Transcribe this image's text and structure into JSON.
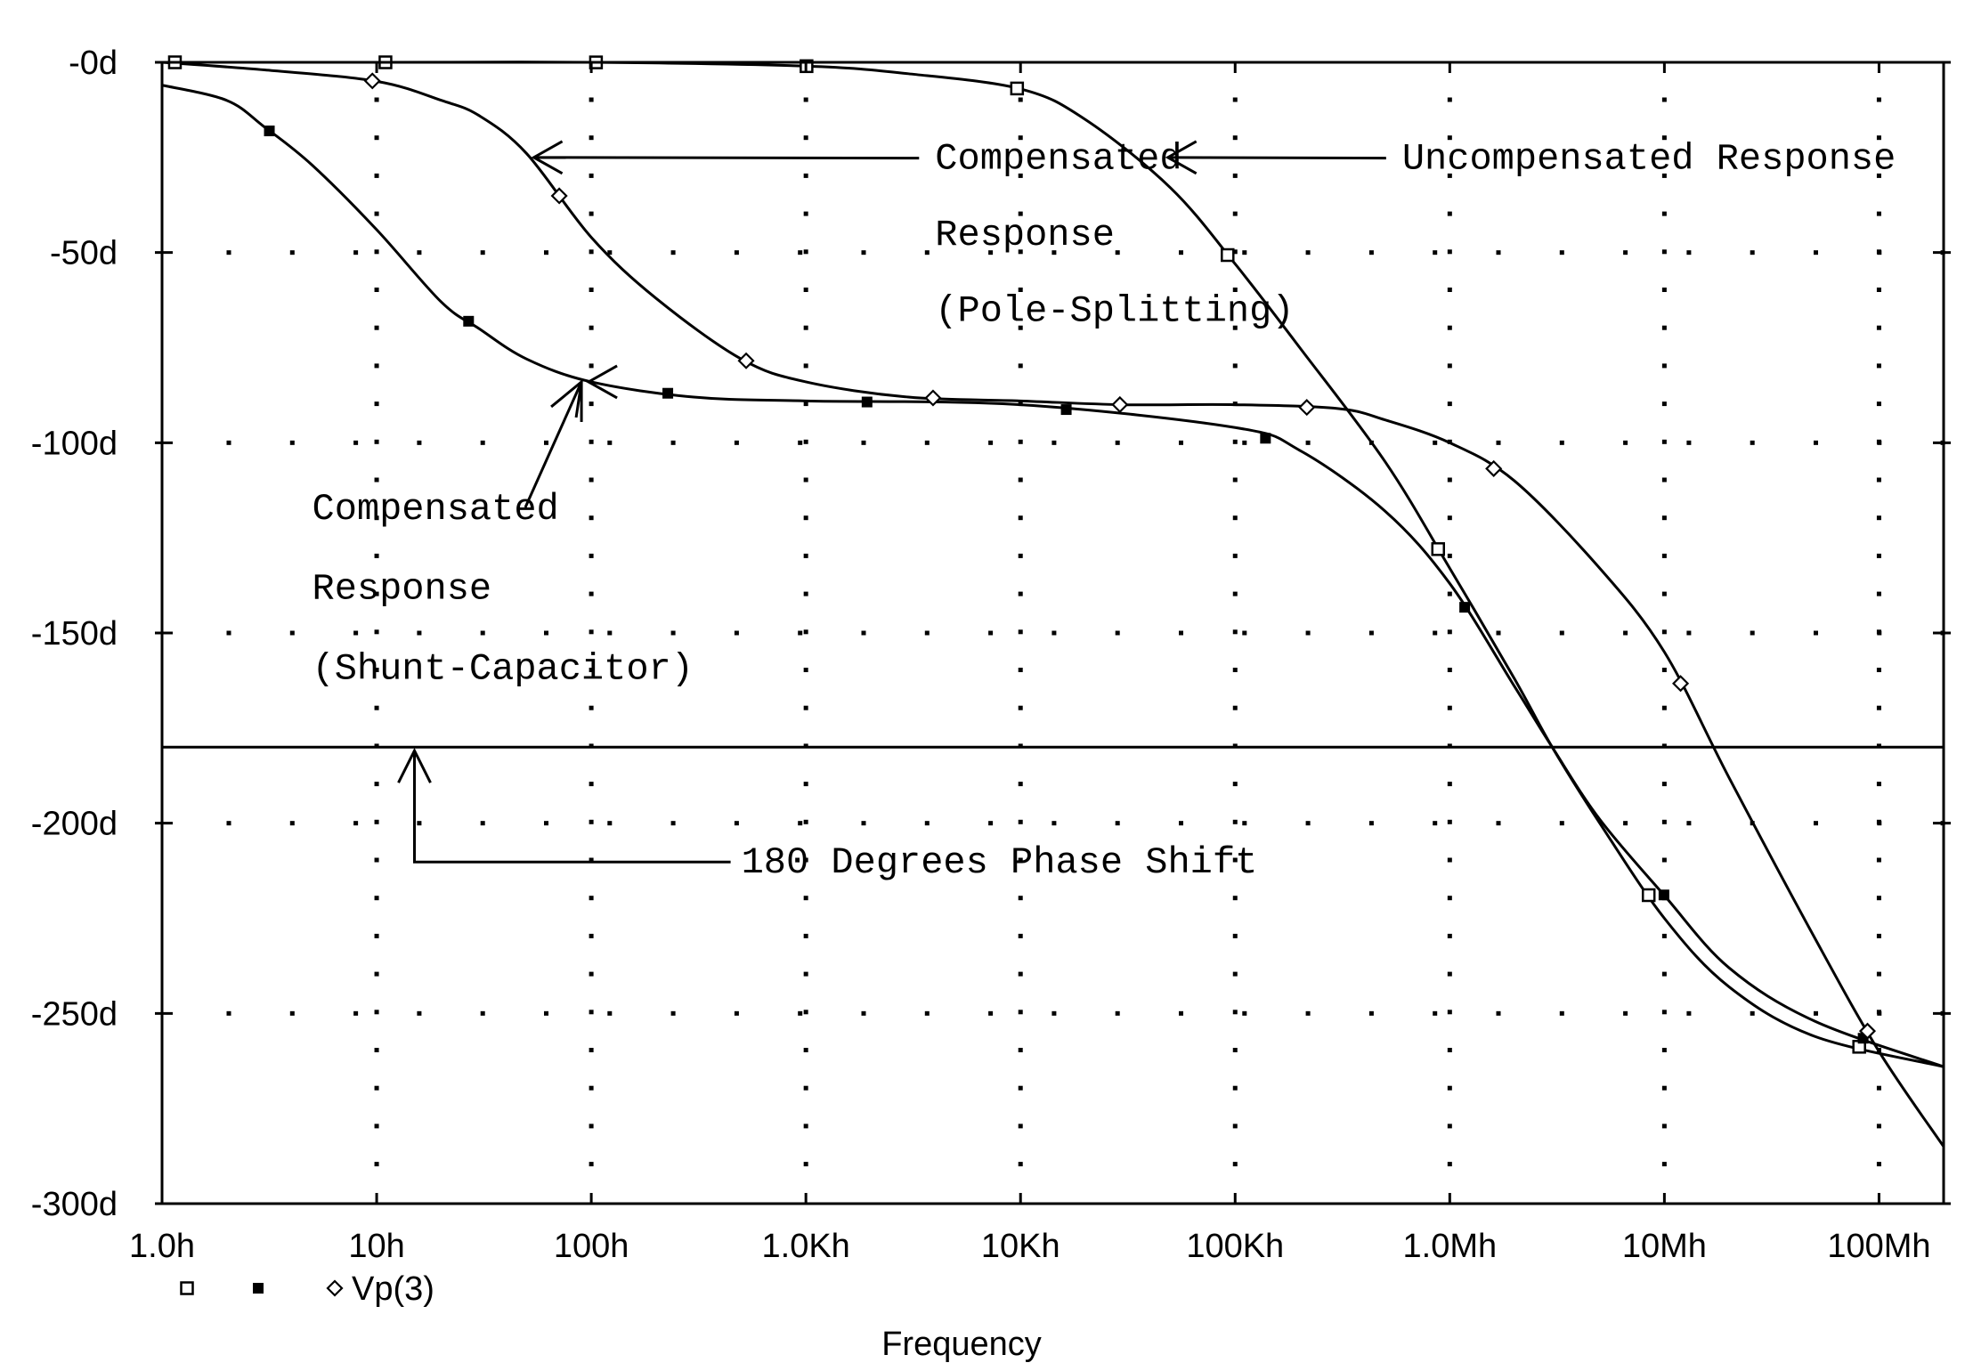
{
  "chart_data": {
    "type": "line",
    "title": "",
    "xlabel": "Frequency",
    "ylabel": "",
    "x_scale": "log",
    "xlim": [
      1,
      200000000
    ],
    "ylim": [
      -300,
      0
    ],
    "x_ticks": [
      {
        "value": 1,
        "label": "1.0h"
      },
      {
        "value": 10,
        "label": "10h"
      },
      {
        "value": 100,
        "label": "100h"
      },
      {
        "value": 1000,
        "label": "1.0Kh"
      },
      {
        "value": 10000,
        "label": "10Kh"
      },
      {
        "value": 100000,
        "label": "100Kh"
      },
      {
        "value": 1000000,
        "label": "1.0Mh"
      },
      {
        "value": 10000000,
        "label": "10Mh"
      },
      {
        "value": 100000000,
        "label": "100Mh"
      }
    ],
    "y_ticks": [
      {
        "value": 0,
        "label": "-0d"
      },
      {
        "value": -50,
        "label": "-50d"
      },
      {
        "value": -100,
        "label": "-100d"
      },
      {
        "value": -150,
        "label": "-150d"
      },
      {
        "value": -200,
        "label": "-200d"
      },
      {
        "value": -250,
        "label": "-250d"
      },
      {
        "value": -300,
        "label": "-300d"
      }
    ],
    "grid": "dotted",
    "legend": {
      "placement": "bottom-left",
      "markers": [
        "open-square",
        "filled-square",
        "diamond"
      ],
      "label": "Vp(3)"
    },
    "series": [
      {
        "marker": "open-square",
        "x": [
          1,
          10,
          100,
          1000,
          3000,
          10000,
          20000,
          50000,
          100000,
          200000,
          500000,
          1000000,
          2000000,
          3000000,
          5000000,
          10000000,
          20000000,
          50000000,
          200000000
        ],
        "y": [
          0,
          0,
          0,
          -1,
          -3,
          -7,
          -15,
          -33,
          -53,
          -75,
          -105,
          -133,
          -162,
          -180,
          -200,
          -225,
          -243,
          -256,
          -264
        ]
      },
      {
        "marker": "filled-square",
        "x": [
          1,
          2,
          3,
          5,
          10,
          20,
          30,
          50,
          100,
          300,
          1000,
          10000,
          100000,
          200000,
          500000,
          1000000,
          2000000,
          3000000,
          5000000,
          10000000,
          20000000,
          50000000,
          200000000
        ],
        "y": [
          -6,
          -10,
          -17,
          -27,
          -44,
          -63,
          -70,
          -78,
          -84,
          -88,
          -89,
          -90,
          -96,
          -102,
          -118,
          -137,
          -164,
          -180,
          -199,
          -219,
          -238,
          -252,
          -264
        ]
      },
      {
        "marker": "diamond",
        "x": [
          1,
          3,
          10,
          20,
          30,
          50,
          100,
          200,
          500,
          1000,
          3000,
          10000,
          30000,
          100000,
          300000,
          500000,
          1000000,
          2000000,
          5000000,
          10000000,
          20000000,
          50000000,
          100000000,
          200000000
        ],
        "y": [
          0,
          -2,
          -5,
          -10,
          -14,
          -24,
          -46,
          -62,
          -78,
          -84,
          -88,
          -89,
          -90,
          -90,
          -91,
          -94,
          -100,
          -110,
          -133,
          -155,
          -188,
          -230,
          -260,
          -285
        ]
      },
      {
        "marker": "none",
        "x": [
          1,
          200000000
        ],
        "y": [
          -180,
          -180
        ]
      }
    ],
    "annotations": [
      {
        "text": "Compensated",
        "x": 4000,
        "y": -28,
        "arrow_to": [
          50,
          -25
        ]
      },
      {
        "text": "Response",
        "x": 4000,
        "y": -48
      },
      {
        "text": "(Pole-Splitting)",
        "x": 4000,
        "y": -68
      },
      {
        "text": "Uncompensated Response",
        "x": 600000,
        "y": -28,
        "arrow_to": [
          45000,
          -25
        ]
      },
      {
        "text": "Compensated",
        "x": 5,
        "y": -120,
        "arrow_to": [
          90,
          -84
        ]
      },
      {
        "text": "Response",
        "x": 5,
        "y": -141
      },
      {
        "text": "(Shunt-Capacitor)",
        "x": 5,
        "y": -162
      },
      {
        "text": "180 Degrees Phase Shift",
        "x": 500,
        "y": -213,
        "arrow_to": [
          15,
          -180
        ]
      }
    ]
  }
}
